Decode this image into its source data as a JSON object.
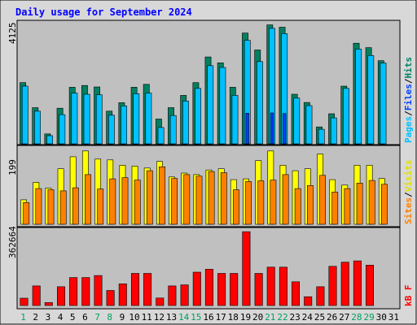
{
  "title": "Daily usage for September 2024",
  "colors": {
    "frame_bg": "#d8d8d8",
    "plot_bg": "#c0c0c0",
    "pages": "#00c0ff",
    "files": "#0040ff",
    "hits": "#008060",
    "sites": "#ff8000",
    "visits": "#ffff00",
    "kbf": "#ff0000",
    "title": "#0000ff",
    "weekend_label": "#00a060",
    "weekday_label": "#000000"
  },
  "chart_data": [
    {
      "type": "bar",
      "panel": "hits-files-pages",
      "ymax_label": "4125",
      "ylim": [
        0,
        4125
      ],
      "legend": [
        "Pages",
        "Files",
        "Hits"
      ],
      "categories": [
        "1",
        "2",
        "3",
        "4",
        "5",
        "6",
        "7",
        "8",
        "9",
        "10",
        "11",
        "12",
        "13",
        "14",
        "15",
        "16",
        "17",
        "18",
        "19",
        "20",
        "21",
        "22",
        "23",
        "24",
        "25",
        "26",
        "27",
        "28",
        "29",
        "30",
        "31"
      ],
      "series": [
        {
          "name": "Hits",
          "values": [
            2100,
            1240,
            340,
            1220,
            1940,
            2000,
            1950,
            1120,
            1410,
            1940,
            2040,
            850,
            1240,
            1660,
            2100,
            2980,
            2780,
            1940,
            3800,
            3220,
            4080,
            4000,
            1700,
            1420,
            580,
            1030,
            1980,
            3450,
            3300,
            2850,
            0
          ]
        },
        {
          "name": "Files",
          "values": [
            0,
            0,
            0,
            0,
            0,
            0,
            0,
            0,
            0,
            0,
            0,
            0,
            0,
            0,
            0,
            0,
            0,
            0,
            1050,
            0,
            1060,
            1040,
            0,
            0,
            0,
            0,
            0,
            0,
            0,
            0,
            0
          ]
        },
        {
          "name": "Pages",
          "values": [
            1980,
            1120,
            280,
            1000,
            1740,
            1700,
            1680,
            980,
            1300,
            1720,
            1740,
            560,
            970,
            1470,
            1900,
            2680,
            2620,
            1660,
            3550,
            2820,
            3960,
            3780,
            1570,
            1310,
            500,
            890,
            1900,
            3250,
            3030,
            2770,
            0
          ]
        }
      ]
    },
    {
      "type": "bar",
      "panel": "visits-sites",
      "ymax_label": "199",
      "ylim": [
        0,
        199
      ],
      "legend": [
        "Sites",
        "Visits"
      ],
      "categories": [
        "1",
        "2",
        "3",
        "4",
        "5",
        "6",
        "7",
        "8",
        "9",
        "10",
        "11",
        "12",
        "13",
        "14",
        "15",
        "16",
        "17",
        "18",
        "19",
        "20",
        "21",
        "22",
        "23",
        "24",
        "25",
        "26",
        "27",
        "28",
        "29",
        "30",
        "31"
      ],
      "series": [
        {
          "name": "Visits",
          "values": [
            63,
            108,
            93,
            143,
            174,
            189,
            168,
            166,
            152,
            150,
            145,
            162,
            122,
            132,
            128,
            140,
            143,
            115,
            117,
            164,
            189,
            152,
            138,
            143,
            181,
            115,
            101,
            152,
            152,
            118,
            0
          ]
        },
        {
          "name": "Sites",
          "values": [
            56,
            92,
            89,
            86,
            94,
            128,
            91,
            117,
            120,
            114,
            138,
            148,
            118,
            128,
            124,
            136,
            133,
            89,
            110,
            112,
            114,
            128,
            92,
            100,
            126,
            83,
            92,
            106,
            113,
            103,
            0
          ]
        }
      ]
    },
    {
      "type": "bar",
      "panel": "kbf",
      "ymax_label": "362664",
      "ylim": [
        0,
        362664
      ],
      "legend": [
        "kB F"
      ],
      "categories": [
        "1",
        "2",
        "3",
        "4",
        "5",
        "6",
        "7",
        "8",
        "9",
        "10",
        "11",
        "12",
        "13",
        "14",
        "15",
        "16",
        "17",
        "18",
        "19",
        "20",
        "21",
        "22",
        "23",
        "24",
        "25",
        "26",
        "27",
        "28",
        "29",
        "30",
        "31"
      ],
      "series": [
        {
          "name": "kB F",
          "values": [
            35000,
            94000,
            14000,
            90000,
            134000,
            134000,
            144000,
            72000,
            104000,
            154000,
            154000,
            36000,
            94000,
            99000,
            160000,
            174000,
            154000,
            154000,
            354000,
            154000,
            184000,
            184000,
            114000,
            42000,
            90000,
            188000,
            208000,
            214000,
            194000,
            0,
            0
          ]
        }
      ]
    }
  ],
  "x_axis": {
    "labels": [
      "1",
      "2",
      "3",
      "4",
      "5",
      "6",
      "7",
      "8",
      "9",
      "10",
      "11",
      "12",
      "13",
      "14",
      "15",
      "16",
      "17",
      "18",
      "19",
      "20",
      "21",
      "22",
      "23",
      "24",
      "25",
      "26",
      "27",
      "28",
      "29",
      "30",
      "31"
    ],
    "weekend": [
      true,
      false,
      false,
      false,
      false,
      false,
      true,
      true,
      false,
      false,
      false,
      false,
      false,
      true,
      true,
      false,
      false,
      false,
      false,
      false,
      true,
      true,
      false,
      false,
      false,
      false,
      false,
      true,
      true,
      false,
      false
    ]
  }
}
